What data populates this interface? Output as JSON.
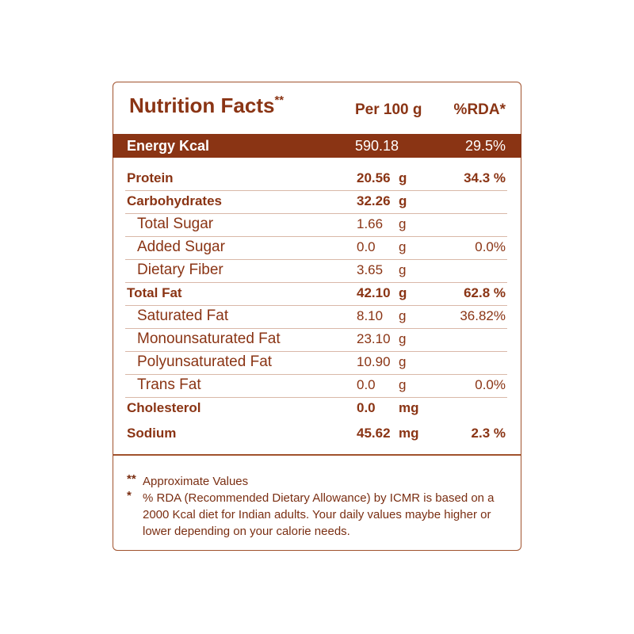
{
  "header": {
    "title": "Nutrition Facts",
    "title_mark": "**",
    "col_value": "Per 100 g",
    "col_rda": "%RDA*"
  },
  "energy": {
    "name": "Energy Kcal",
    "value": "590.18",
    "rda": "29.5%"
  },
  "table": {
    "nutrients": [
      {
        "name": "Protein",
        "value": "20.56",
        "unit": "g",
        "rda": "34.3 %"
      },
      {
        "name": "Carbohydrates",
        "value": "32.26",
        "unit": "g",
        "sub": [
          {
            "name": "Total Sugar",
            "value": "1.66",
            "unit": "g"
          },
          {
            "name": "Added Sugar",
            "value": "0.0",
            "unit": "g",
            "rda": "0.0%"
          },
          {
            "name": "Dietary Fiber",
            "value": "3.65",
            "unit": "g"
          }
        ]
      },
      {
        "name": "Total Fat",
        "value": "42.10",
        "unit": "g",
        "rda": "62.8 %",
        "sub": [
          {
            "name": "Saturated Fat",
            "value": "8.10",
            "unit": "g",
            "rda": "36.82%"
          },
          {
            "name": "Monounsaturated Fat",
            "value": "23.10",
            "unit": "g"
          },
          {
            "name": "Polyunsaturated Fat",
            "value": "10.90",
            "unit": "g"
          },
          {
            "name": "Trans Fat",
            "value": "0.0",
            "unit": "g",
            "rda": "0.0%"
          }
        ]
      },
      {
        "name": "Cholesterol",
        "value": "0.0",
        "unit": "mg"
      },
      {
        "name": "Sodium",
        "value": "45.62",
        "unit": "mg",
        "rda": "2.3 %"
      }
    ]
  },
  "footnotes": [
    {
      "mark": "**",
      "text": "Approximate Values"
    },
    {
      "mark": "*",
      "text": "% RDA (Recommended Dietary Allowance) by ICMR is based on a 2000 Kcal diet for Indian adults. Your daily values maybe higher or lower depending on your calorie needs."
    }
  ]
}
